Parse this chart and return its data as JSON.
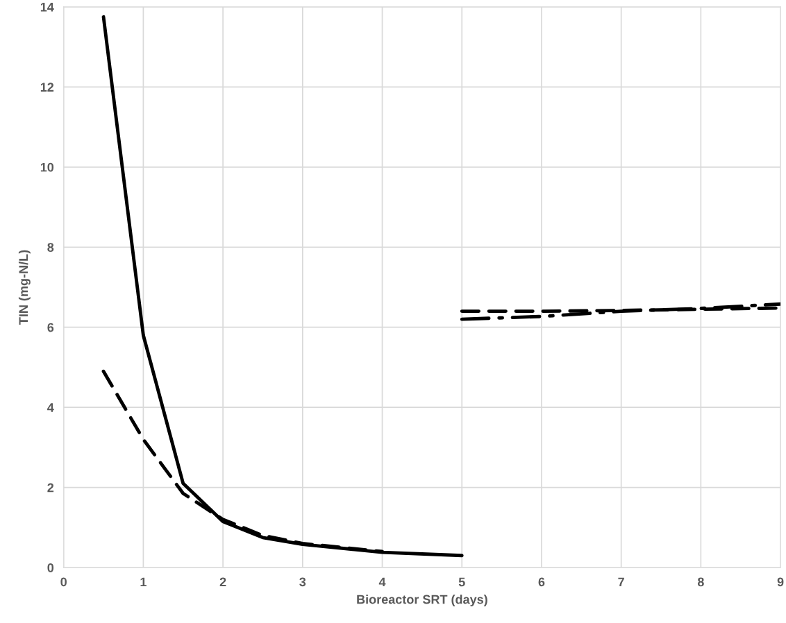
{
  "chart_data": {
    "type": "line",
    "xlabel": "Bioreactor SRT (days)",
    "ylabel": "TIN (mg-N/L)",
    "xlim": [
      0,
      9
    ],
    "xticks": [
      0,
      1,
      2,
      3,
      4,
      5,
      6,
      7,
      8,
      9
    ],
    "ylim": [
      0,
      14
    ],
    "yticks": [
      0,
      2,
      4,
      6,
      8,
      10,
      12,
      14
    ],
    "grid": true,
    "marker": "none",
    "series": [
      {
        "color": "#000000",
        "line_style": "solid",
        "x": [
          0.5,
          1,
          1.5,
          2,
          2.5,
          3,
          4,
          5
        ],
        "values": [
          13.75,
          5.8,
          2.1,
          1.15,
          0.75,
          0.58,
          0.38,
          0.3
        ]
      },
      {
        "color": "#000000",
        "line_style": "dashed",
        "x": [
          0.5,
          1,
          1.5,
          2,
          2.5,
          3,
          4
        ],
        "values": [
          4.9,
          3.2,
          1.85,
          1.2,
          0.8,
          0.6,
          0.4
        ]
      },
      {
        "color": "#000000",
        "line_style": "dashed",
        "x": [
          5,
          6,
          7,
          8,
          9
        ],
        "values": [
          6.4,
          6.4,
          6.42,
          6.45,
          6.48
        ]
      },
      {
        "color": "#000000",
        "line_style": "dashdot",
        "x": [
          5,
          6,
          7,
          8,
          9
        ],
        "values": [
          6.2,
          6.27,
          6.4,
          6.47,
          6.58
        ]
      }
    ]
  }
}
